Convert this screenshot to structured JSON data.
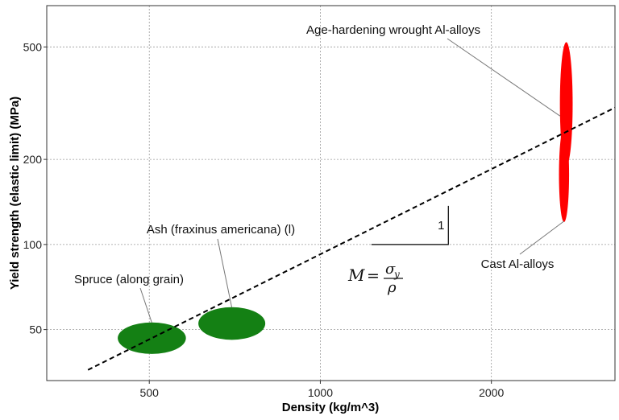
{
  "chart_data": {
    "type": "scatter",
    "title": "",
    "xlabel": "Density (kg/m^3)",
    "ylabel": "Yield strength (elastic limit) (MPa)",
    "x_scale": "log",
    "y_scale": "log",
    "xlim": [
      330,
      3300
    ],
    "ylim": [
      33,
      700
    ],
    "grid": true,
    "x_ticks": [
      {
        "value": 500,
        "label": "500"
      },
      {
        "value": 1000,
        "label": "1000"
      },
      {
        "value": 2000,
        "label": "2000"
      }
    ],
    "y_ticks": [
      {
        "value": 50,
        "label": "50"
      },
      {
        "value": 100,
        "label": "100"
      },
      {
        "value": 200,
        "label": "200"
      },
      {
        "value": 500,
        "label": "500"
      }
    ],
    "materials": [
      {
        "label": "Spruce (along grain)",
        "color": "#148014",
        "density": [
          440,
          580
        ],
        "strength": [
          41,
          53
        ]
      },
      {
        "label": "Ash (fraxinus americana) (l)",
        "color": "#148014",
        "density": [
          610,
          800
        ],
        "strength": [
          46,
          60
        ]
      },
      {
        "label": "Age-hardening wrought Al-alloys",
        "color": "#ff0000",
        "density": [
          2640,
          2780
        ],
        "strength": [
          190,
          520
        ]
      },
      {
        "label": "Cast Al-alloys",
        "color": "#ff0000",
        "density": [
          2630,
          2740
        ],
        "strength": [
          120,
          260
        ]
      }
    ],
    "guideline": {
      "index": "M = σ_y / ρ",
      "slope": 1,
      "slope_label": "1",
      "style": "dashed",
      "points": [
        [
          390,
          36
        ],
        [
          3300,
          305
        ]
      ],
      "triangle": {
        "x": [
          1230,
          1680
        ],
        "y": [
          100,
          137
        ]
      }
    },
    "formula": {
      "lhs": "M",
      "equals": "=",
      "numerator": "σ",
      "numerator_sub": "y",
      "denominator": "ρ"
    }
  }
}
